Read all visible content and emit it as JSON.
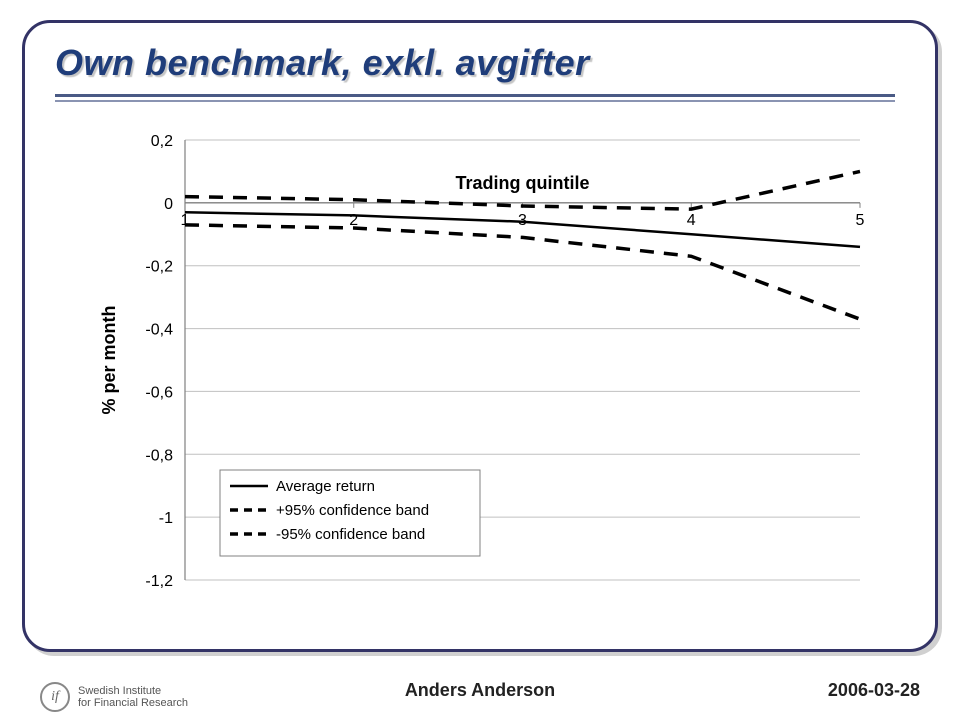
{
  "title": "Own benchmark, exkl. avgifter",
  "footer": {
    "author": "Anders Anderson",
    "date": "2006-03-28",
    "logo_line1": "Swedish Institute",
    "logo_line2": "for Financial Research",
    "logo_mark": "if"
  },
  "chart": {
    "type": "line",
    "xlabel": "Trading quintile",
    "ylabel": "% per month",
    "x_categories": [
      1,
      2,
      3,
      4,
      5
    ],
    "xlim": [
      1,
      5
    ],
    "ylim": [
      -1.2,
      0.2
    ],
    "y_ticks": [
      0.2,
      0.0,
      -0.2,
      -0.4,
      -0.6,
      -0.8,
      -1.0,
      -1.2
    ],
    "y_tick_labels": [
      "0,2",
      "0",
      "-0,2",
      "-0,4",
      "-0,6",
      "-0,8",
      "-1",
      "-1,2"
    ],
    "grid_color": "#c0c0c0",
    "axis_color": "#808080",
    "background_color": "#ffffff",
    "axis_label_fontsize": 18,
    "tick_fontsize": 16,
    "legend": {
      "items": [
        "Average return",
        "+95% confidence band",
        "-95% confidence band"
      ],
      "position": "inside-lower-left",
      "fontsize": 15,
      "border_color": "#808080"
    },
    "series": [
      {
        "name": "Average return",
        "color": "#000000",
        "line_width": 2.5,
        "dash": "solid",
        "x": [
          1,
          2,
          3,
          4,
          5
        ],
        "y": [
          -0.03,
          -0.04,
          -0.06,
          -0.1,
          -0.14
        ]
      },
      {
        "name": "+95% confidence band",
        "color": "#000000",
        "line_width": 3.5,
        "dash": "14 10",
        "x": [
          1,
          2,
          3,
          4,
          5
        ],
        "y": [
          0.02,
          0.01,
          -0.01,
          -0.02,
          0.1
        ]
      },
      {
        "name": "-95% confidence band",
        "color": "#000000",
        "line_width": 3.5,
        "dash": "14 10",
        "x": [
          1,
          2,
          3,
          4,
          5
        ],
        "y": [
          -0.07,
          -0.08,
          -0.11,
          -0.17,
          -0.37
        ]
      }
    ]
  }
}
